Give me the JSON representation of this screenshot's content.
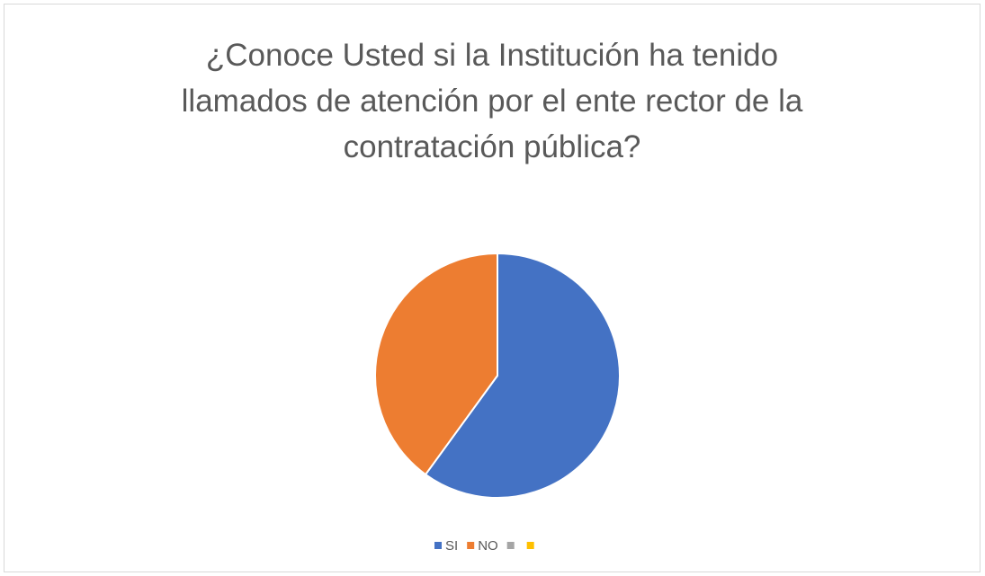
{
  "chart_data": {
    "type": "pie",
    "title": "¿Conoce Usted si la Institución ha tenido llamados de atención por el ente rector de la contratación pública?",
    "categories": [
      "SI",
      "NO",
      null,
      null
    ],
    "values": [
      60,
      40,
      0,
      0
    ],
    "colors": [
      "#4472c4",
      "#ed7d31",
      "#a5a5a5",
      "#ffc000"
    ],
    "legend": "bottom"
  }
}
